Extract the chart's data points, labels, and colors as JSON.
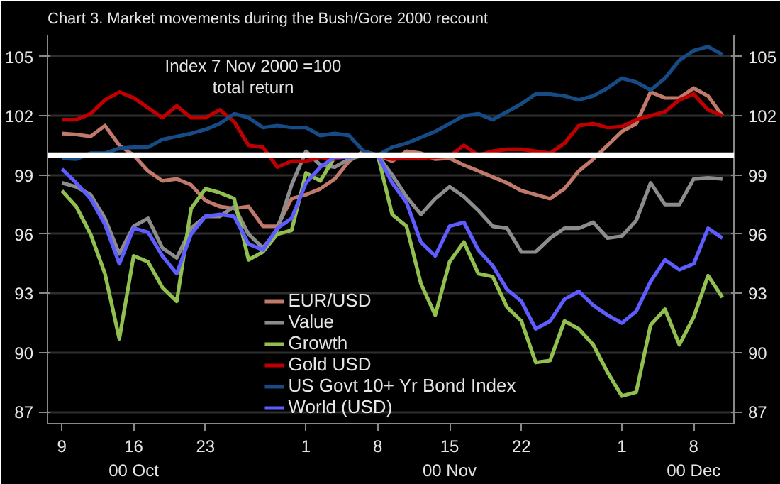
{
  "chart_data": {
    "type": "line",
    "title": "Chart 3. Market movements during the Bush/Gore 2000 recount",
    "annotations": [
      "Index 7 Nov 2000 =100\ntotal return"
    ],
    "categories": [
      "9",
      null,
      null,
      null,
      null,
      "16\n00 Oct",
      null,
      null,
      null,
      null,
      "23",
      null,
      null,
      null,
      null,
      null,
      null,
      "1",
      null,
      null,
      null,
      null,
      "8",
      null,
      null,
      null,
      null,
      "15\n00 Nov",
      null,
      null,
      null,
      null,
      "22",
      null,
      null,
      null,
      null,
      null,
      null,
      "1",
      null,
      null,
      null,
      null,
      "8\n00 Dec",
      null,
      null
    ],
    "series": [
      {
        "name": "EUR/USD",
        "color": "#c0796b",
        "values": [
          101.1,
          101.05,
          100.95,
          101.5,
          100.5,
          100.0,
          99.2,
          98.7,
          98.8,
          98.5,
          97.7,
          97.4,
          97.3,
          97.4,
          96.4,
          96.4,
          97.8,
          98.0,
          98.3,
          98.8,
          99.7,
          100.2,
          100.0,
          99.7,
          100.2,
          100.1,
          99.8,
          99.85,
          99.5,
          99.2,
          98.9,
          98.6,
          98.2,
          98.0,
          97.8,
          98.3,
          99.2,
          99.8,
          100.5,
          101.2,
          101.6,
          103.2,
          102.9,
          102.9,
          103.4,
          103.0,
          102.0
        ]
      },
      {
        "name": "Value",
        "color": "#8c8c8c",
        "values": [
          98.6,
          98.4,
          98.0,
          96.8,
          95.0,
          96.4,
          96.8,
          95.3,
          94.8,
          96.3,
          96.9,
          96.9,
          97.4,
          96.0,
          95.3,
          96.2,
          98.5,
          100.2,
          99.5,
          99.4,
          99.8,
          100.0,
          100.0,
          99.0,
          97.9,
          97.0,
          97.8,
          98.4,
          97.9,
          97.2,
          96.4,
          96.3,
          95.1,
          95.1,
          95.8,
          96.3,
          96.3,
          96.6,
          95.8,
          95.9,
          96.7,
          98.6,
          97.5,
          97.5,
          98.8,
          98.85,
          98.8
        ]
      },
      {
        "name": "Growth",
        "color": "#92c050",
        "values": [
          98.2,
          97.4,
          96.0,
          94.0,
          90.7,
          94.9,
          94.6,
          93.3,
          92.6,
          97.3,
          98.3,
          98.1,
          97.8,
          94.7,
          95.1,
          96.0,
          96.2,
          99.1,
          98.7,
          99.9,
          100.0,
          100.0,
          100.0,
          97.0,
          96.4,
          93.5,
          91.9,
          94.6,
          95.6,
          94.0,
          93.85,
          92.3,
          91.6,
          89.5,
          89.6,
          91.6,
          91.2,
          90.4,
          89.0,
          87.8,
          88.0,
          91.4,
          92.2,
          90.4,
          91.8,
          93.9,
          92.8
        ]
      },
      {
        "name": "Gold USD",
        "color": "#c00000",
        "values": [
          101.8,
          101.8,
          102.1,
          102.8,
          103.2,
          102.9,
          102.4,
          101.9,
          102.5,
          101.9,
          101.9,
          102.3,
          101.7,
          100.5,
          100.4,
          99.4,
          99.7,
          99.7,
          99.9,
          99.8,
          100.0,
          100.0,
          100.0,
          99.8,
          99.85,
          99.85,
          99.9,
          99.95,
          100.5,
          100.0,
          100.2,
          100.3,
          100.3,
          100.2,
          100.1,
          100.6,
          101.5,
          101.6,
          101.4,
          101.45,
          101.8,
          102.0,
          102.2,
          102.8,
          103.1,
          102.3,
          102.0
        ]
      },
      {
        "name": "US Govt 10+ Yr Bond Index",
        "color": "#164b85",
        "values": [
          99.85,
          99.8,
          100.1,
          100.1,
          100.35,
          100.4,
          100.4,
          100.8,
          100.95,
          101.1,
          101.3,
          101.6,
          102.1,
          101.9,
          101.4,
          101.5,
          101.4,
          101.4,
          101.0,
          101.1,
          101.0,
          100.2,
          100.0,
          100.4,
          100.6,
          100.9,
          101.2,
          101.6,
          102.0,
          102.1,
          101.8,
          102.2,
          102.6,
          103.1,
          103.1,
          103.0,
          102.8,
          103.0,
          103.4,
          103.9,
          103.7,
          103.3,
          103.9,
          104.8,
          105.3,
          105.5,
          105.1
        ]
      },
      {
        "name": "World (USD)",
        "color": "#5c5cff",
        "values": [
          99.3,
          98.6,
          97.8,
          96.5,
          94.5,
          96.3,
          96.1,
          94.9,
          94.0,
          96.0,
          96.9,
          97.0,
          96.9,
          95.5,
          95.2,
          96.3,
          96.8,
          98.6,
          99.4,
          99.9,
          99.9,
          100.0,
          100.0,
          98.6,
          97.6,
          95.6,
          94.9,
          96.4,
          96.6,
          95.2,
          94.4,
          93.2,
          92.6,
          91.2,
          91.6,
          92.7,
          93.1,
          92.4,
          91.9,
          91.5,
          92.1,
          93.6,
          94.7,
          94.2,
          94.5,
          96.3,
          95.8
        ]
      }
    ],
    "ylim": [
      86.4,
      106.1
    ],
    "yticks": [
      87,
      90,
      93,
      96,
      99,
      102,
      105
    ],
    "y2lim": [
      86.4,
      106.1
    ],
    "y2ticks": [
      87,
      90,
      93,
      96,
      99,
      102,
      105
    ],
    "ref_lines": [
      {
        "axis": "y",
        "value": 100,
        "label": null,
        "color": "#ffffff"
      }
    ],
    "grid": "y",
    "legend": "bottom",
    "line_style": "solid"
  }
}
